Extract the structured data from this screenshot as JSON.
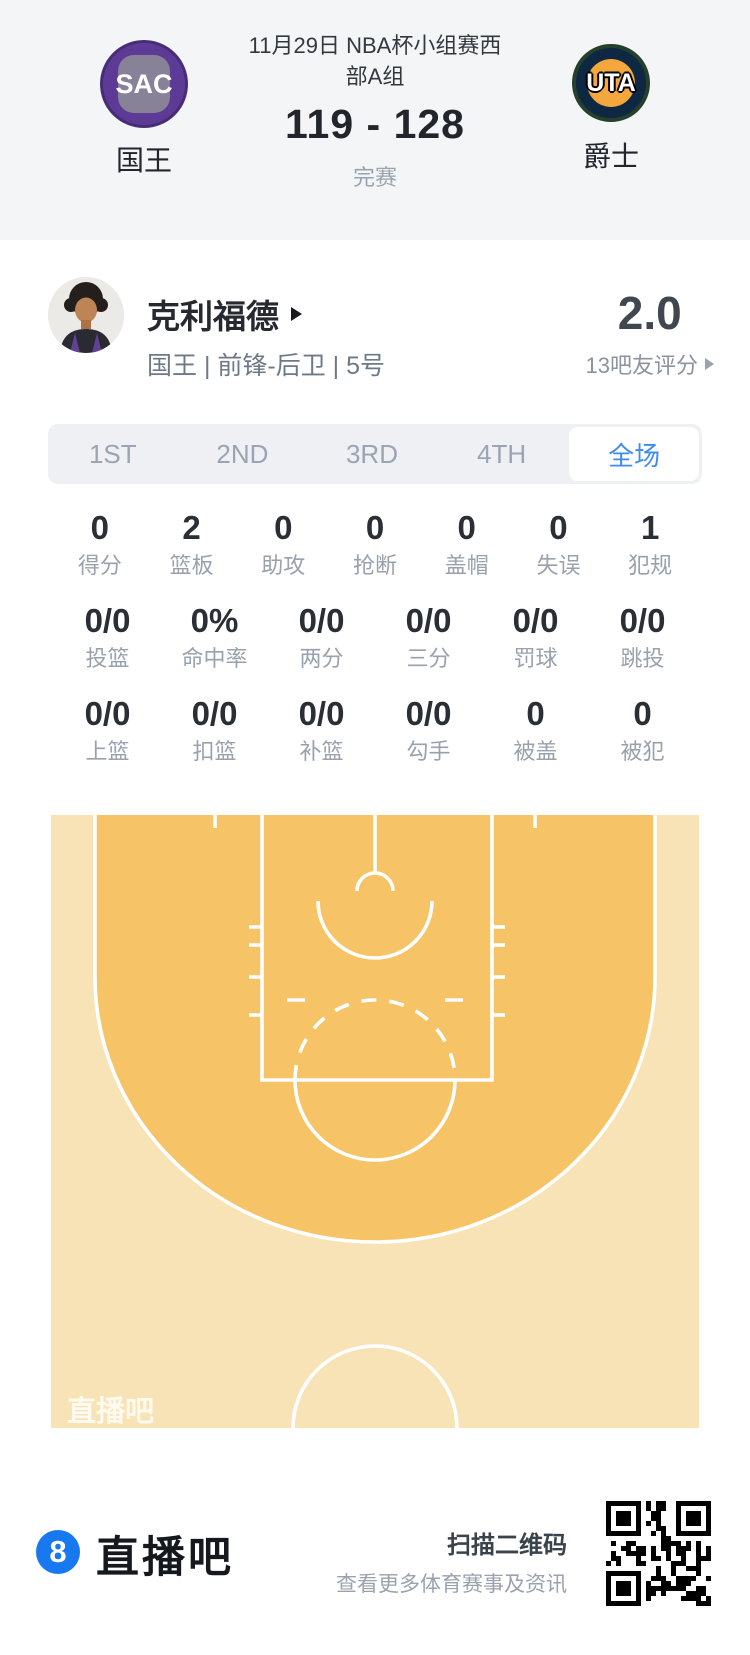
{
  "header": {
    "title_lines": [
      "11月29日 NBA杯小组赛西",
      "部A组"
    ],
    "score": "119 - 128",
    "status": "完赛",
    "home": {
      "abbr": "SAC",
      "name": "国王"
    },
    "away": {
      "abbr": "UTA",
      "name": "爵士"
    }
  },
  "player": {
    "name": "克利福德",
    "meta": "国王 | 前锋-后卫 | 5号",
    "rating": "2.0",
    "rating_label": "13吧友评分"
  },
  "tabs": [
    {
      "label": "1ST",
      "active": false
    },
    {
      "label": "2ND",
      "active": false
    },
    {
      "label": "3RD",
      "active": false
    },
    {
      "label": "4TH",
      "active": false
    },
    {
      "label": "全场",
      "active": true
    }
  ],
  "stats": {
    "rows": [
      [
        {
          "value": "0",
          "label": "得分"
        },
        {
          "value": "2",
          "label": "篮板"
        },
        {
          "value": "0",
          "label": "助攻"
        },
        {
          "value": "0",
          "label": "抢断"
        },
        {
          "value": "0",
          "label": "盖帽"
        },
        {
          "value": "0",
          "label": "失误"
        },
        {
          "value": "1",
          "label": "犯规"
        }
      ],
      [
        {
          "value": "0/0",
          "label": "投篮"
        },
        {
          "value": "0%",
          "label": "命中率"
        },
        {
          "value": "0/0",
          "label": "两分"
        },
        {
          "value": "0/0",
          "label": "三分"
        },
        {
          "value": "0/0",
          "label": "罚球"
        },
        {
          "value": "0/0",
          "label": "跳投"
        }
      ],
      [
        {
          "value": "0/0",
          "label": "上篮"
        },
        {
          "value": "0/0",
          "label": "扣篮"
        },
        {
          "value": "0/0",
          "label": "补篮"
        },
        {
          "value": "0/0",
          "label": "勾手"
        },
        {
          "value": "0",
          "label": "被盖"
        },
        {
          "value": "0",
          "label": "被犯"
        }
      ]
    ]
  },
  "court": {
    "watermark": "直播吧"
  },
  "footer": {
    "logo_glyph": "8",
    "brand": "直播吧",
    "qr_title": "扫描二维码",
    "qr_subtitle": "查看更多体育赛事及资讯",
    "qr_icon": "qr-code"
  },
  "colors": {
    "accent_blue": "#3e8cf0",
    "brand_blue": "#1878ef",
    "court_orange": "#f6c466",
    "court_cream": "#f8e3b6",
    "kings_purple": "#5e3a97",
    "jazz_navy": "#0e2742",
    "jazz_yellow": "#f3a73c",
    "header_bg": "#f4f5f7"
  }
}
